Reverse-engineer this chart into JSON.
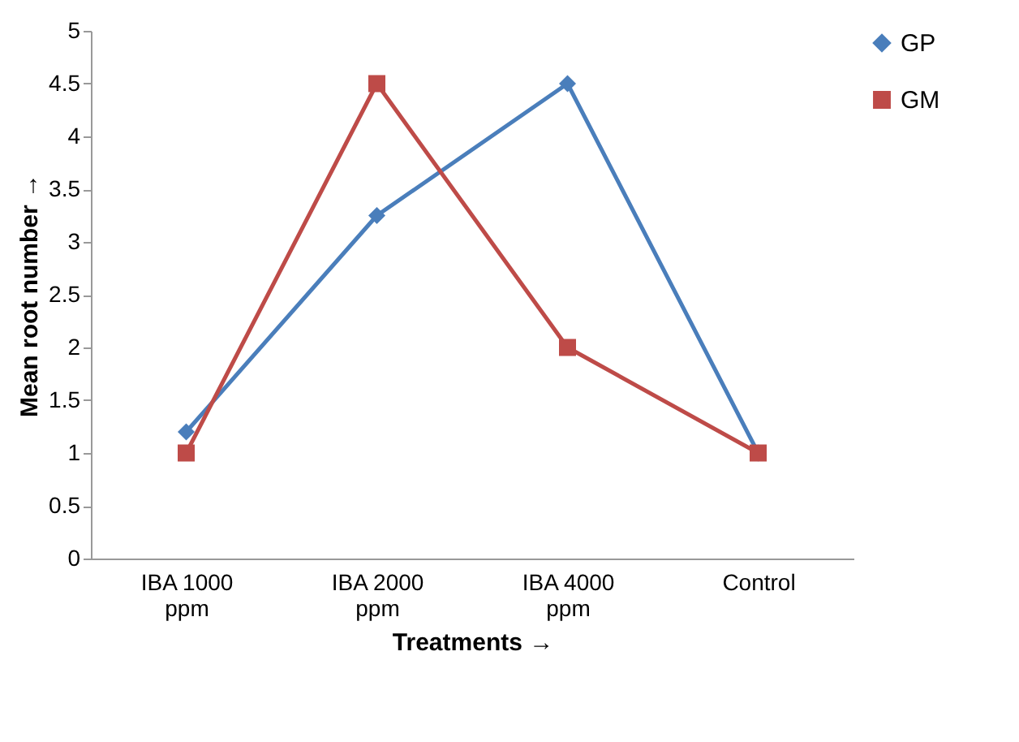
{
  "chart_data": {
    "type": "line",
    "xlabel": "Treatments →",
    "ylabel": "Mean root number →",
    "categories": [
      "IBA 1000 ppm",
      "IBA 2000 ppm",
      "IBA 4000 ppm",
      "Control"
    ],
    "series": [
      {
        "name": "GP",
        "color": "#4a7ebb",
        "marker": "diamond",
        "values": [
          1.2,
          3.25,
          4.5,
          1
        ]
      },
      {
        "name": "GM",
        "color": "#be4b48",
        "marker": "square",
        "values": [
          1,
          4.5,
          2,
          1
        ]
      }
    ],
    "ylim": [
      0,
      5
    ],
    "yticks": [
      0,
      0.5,
      1,
      1.5,
      2,
      2.5,
      3,
      3.5,
      4,
      4.5,
      5
    ],
    "grid": false,
    "legend": "top right",
    "line_style": "solid"
  }
}
